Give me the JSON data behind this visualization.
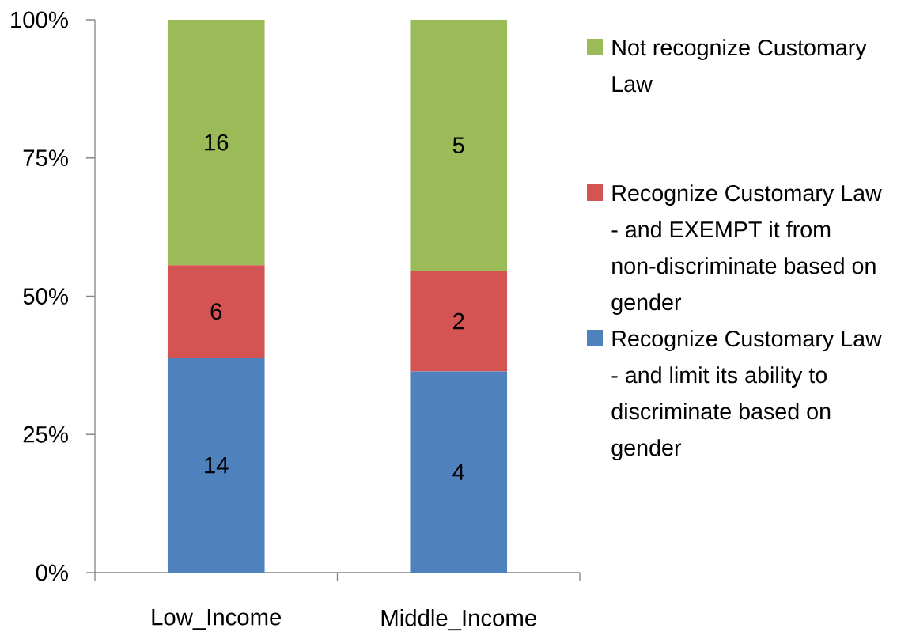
{
  "chart_data": {
    "type": "bar",
    "stacked": true,
    "categories": [
      "Low_Income",
      "Middle_Income"
    ],
    "series": [
      {
        "name": "Recognize Customary Law - and limit its ability to discriminate based on gender",
        "color": "#4f81bd",
        "values": [
          38.9,
          36.4
        ]
      },
      {
        "name": "Recognize Customary Law - and EXEMPT it from non-discriminate based on gender",
        "color": "#d35452",
        "values": [
          16.7,
          18.2
        ]
      },
      {
        "name": "Not recognize Customary Law",
        "color": "#9bbb59",
        "values": [
          44.4,
          45.4
        ]
      }
    ],
    "annotations": [
      "14",
      "4",
      "6",
      "2",
      "16",
      "5"
    ],
    "ylim": [
      0,
      100
    ],
    "yticks": [
      {
        "value": 0,
        "label": "0%"
      },
      {
        "value": 25,
        "label": "25%"
      },
      {
        "value": 50,
        "label": "50%"
      },
      {
        "value": 75,
        "label": "75%"
      },
      {
        "value": 100,
        "label": "100%"
      }
    ],
    "legend": "right"
  }
}
